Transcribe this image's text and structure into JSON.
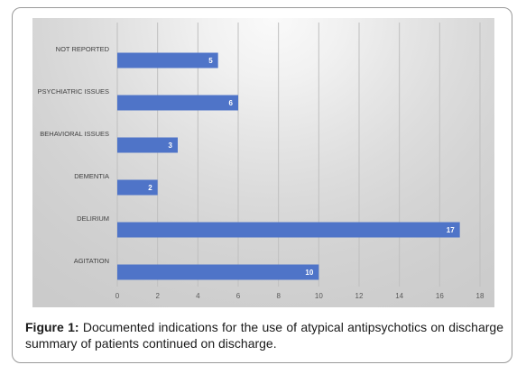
{
  "chart_data": {
    "type": "bar",
    "orientation": "horizontal",
    "categories": [
      "NOT REPORTED",
      "PSYCHIATRIC ISSUES",
      "BEHAVIORAL ISSUES",
      "DEMENTIA",
      "DELIRIUM",
      "AGITATION"
    ],
    "values": [
      5,
      6,
      3,
      2,
      17,
      10
    ],
    "xlim": [
      0,
      18
    ],
    "x_ticks": [
      "0",
      "2",
      "4",
      "6",
      "8",
      "10",
      "12",
      "14",
      "16",
      "18"
    ],
    "grid": "vertical",
    "bar_color": "#4f74c8",
    "data_label_color": "#ffffff"
  },
  "caption": {
    "label": "Figure 1:",
    "text": " Documented indications for the use of atypical antipsychotics on discharge summary of patients continued on discharge."
  }
}
